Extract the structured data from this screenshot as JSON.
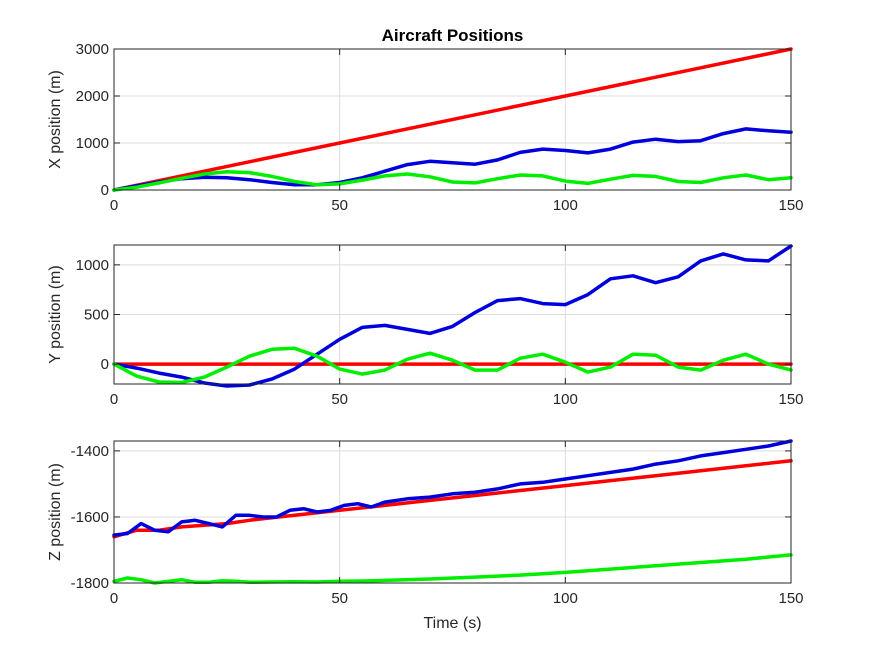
{
  "chart_data": [
    {
      "type": "line",
      "title": "Aircraft Positions",
      "xlabel": "",
      "ylabel": "X position (m)",
      "xlim": [
        0,
        150
      ],
      "ylim": [
        0,
        3000
      ],
      "xticks": [
        0,
        50,
        100,
        150
      ],
      "yticks": [
        0,
        1000,
        2000,
        3000
      ],
      "grid": true,
      "series": [
        {
          "color": "#ff0000",
          "x": [
            0,
            150
          ],
          "y": [
            0,
            3000
          ]
        },
        {
          "color": "#0000dd",
          "x": [
            0,
            5,
            10,
            15,
            20,
            25,
            30,
            35,
            40,
            45,
            50,
            55,
            60,
            65,
            70,
            75,
            80,
            85,
            90,
            95,
            100,
            105,
            110,
            115,
            120,
            125,
            130,
            135,
            140,
            145,
            150
          ],
          "y": [
            0,
            90,
            170,
            240,
            270,
            260,
            220,
            160,
            110,
            110,
            160,
            260,
            400,
            540,
            610,
            580,
            550,
            640,
            800,
            870,
            840,
            790,
            870,
            1020,
            1080,
            1030,
            1050,
            1200,
            1300,
            1260,
            1230
          ]
        },
        {
          "color": "#00ee00",
          "x": [
            0,
            5,
            10,
            15,
            20,
            25,
            30,
            35,
            40,
            45,
            50,
            55,
            60,
            65,
            70,
            75,
            80,
            85,
            90,
            95,
            100,
            105,
            110,
            115,
            120,
            125,
            130,
            135,
            140,
            145,
            150
          ],
          "y": [
            0,
            60,
            150,
            250,
            340,
            390,
            370,
            290,
            180,
            110,
            130,
            210,
            300,
            340,
            280,
            170,
            150,
            240,
            320,
            300,
            190,
            140,
            230,
            310,
            290,
            180,
            160,
            260,
            320,
            220,
            260
          ]
        }
      ]
    },
    {
      "type": "line",
      "title": "",
      "xlabel": "",
      "ylabel": "Y position (m)",
      "xlim": [
        0,
        150
      ],
      "ylim": [
        -200,
        1200
      ],
      "xticks": [
        0,
        50,
        100,
        150
      ],
      "yticks": [
        0,
        500,
        1000
      ],
      "grid": true,
      "series": [
        {
          "color": "#ff0000",
          "x": [
            0,
            150
          ],
          "y": [
            0,
            0
          ]
        },
        {
          "color": "#0000dd",
          "x": [
            0,
            5,
            10,
            15,
            20,
            25,
            30,
            35,
            40,
            45,
            50,
            55,
            60,
            65,
            70,
            75,
            80,
            85,
            90,
            95,
            100,
            105,
            110,
            115,
            120,
            125,
            130,
            135,
            140,
            145,
            150
          ],
          "y": [
            0,
            -40,
            -90,
            -130,
            -190,
            -220,
            -210,
            -150,
            -50,
            100,
            250,
            370,
            390,
            350,
            310,
            380,
            520,
            640,
            660,
            610,
            600,
            700,
            860,
            890,
            820,
            880,
            1040,
            1110,
            1050,
            1040,
            1190
          ]
        },
        {
          "color": "#00ee00",
          "x": [
            0,
            5,
            10,
            15,
            20,
            25,
            30,
            35,
            40,
            45,
            50,
            55,
            60,
            65,
            70,
            75,
            80,
            85,
            90,
            95,
            100,
            105,
            110,
            115,
            120,
            125,
            130,
            135,
            140,
            145,
            150
          ],
          "y": [
            0,
            -120,
            -180,
            -185,
            -130,
            -30,
            80,
            150,
            160,
            80,
            -50,
            -100,
            -60,
            50,
            110,
            40,
            -60,
            -60,
            60,
            100,
            20,
            -80,
            -30,
            100,
            90,
            -30,
            -60,
            40,
            100,
            0,
            -60
          ]
        }
      ]
    },
    {
      "type": "line",
      "title": "",
      "xlabel": "Time (s)",
      "ylabel": "Z position (m)",
      "xlim": [
        0,
        150
      ],
      "ylim": [
        -1800,
        -1370
      ],
      "xticks": [
        0,
        50,
        100,
        150
      ],
      "yticks": [
        -1800,
        -1600,
        -1400
      ],
      "grid": true,
      "series": [
        {
          "color": "#ff0000",
          "x": [
            0,
            5,
            10,
            15,
            20,
            25,
            30,
            40,
            50,
            60,
            70,
            80,
            90,
            100,
            110,
            120,
            130,
            140,
            150
          ],
          "y": [
            -1660,
            -1640,
            -1640,
            -1630,
            -1625,
            -1620,
            -1610,
            -1595,
            -1580,
            -1565,
            -1550,
            -1535,
            -1520,
            -1505,
            -1490,
            -1475,
            -1460,
            -1445,
            -1430
          ]
        },
        {
          "color": "#0000dd",
          "x": [
            0,
            3,
            6,
            9,
            12,
            15,
            18,
            21,
            24,
            27,
            30,
            33,
            36,
            39,
            42,
            45,
            48,
            51,
            54,
            57,
            60,
            65,
            70,
            75,
            80,
            85,
            90,
            95,
            100,
            105,
            110,
            115,
            120,
            125,
            130,
            135,
            140,
            145,
            150
          ],
          "y": [
            -1655,
            -1650,
            -1620,
            -1640,
            -1645,
            -1615,
            -1610,
            -1620,
            -1630,
            -1595,
            -1595,
            -1600,
            -1600,
            -1580,
            -1575,
            -1585,
            -1580,
            -1565,
            -1560,
            -1570,
            -1555,
            -1545,
            -1540,
            -1530,
            -1525,
            -1515,
            -1500,
            -1495,
            -1485,
            -1475,
            -1465,
            -1455,
            -1440,
            -1430,
            -1415,
            -1405,
            -1395,
            -1385,
            -1370
          ]
        },
        {
          "color": "#00ee00",
          "x": [
            0,
            3,
            6,
            9,
            12,
            15,
            18,
            21,
            24,
            27,
            30,
            35,
            40,
            45,
            50,
            55,
            60,
            70,
            80,
            90,
            100,
            110,
            120,
            130,
            140,
            150
          ],
          "y": [
            -1795,
            -1785,
            -1790,
            -1800,
            -1795,
            -1790,
            -1798,
            -1798,
            -1793,
            -1795,
            -1798,
            -1797,
            -1796,
            -1797,
            -1795,
            -1794,
            -1792,
            -1788,
            -1782,
            -1776,
            -1768,
            -1758,
            -1748,
            -1738,
            -1728,
            -1715
          ]
        }
      ]
    }
  ]
}
